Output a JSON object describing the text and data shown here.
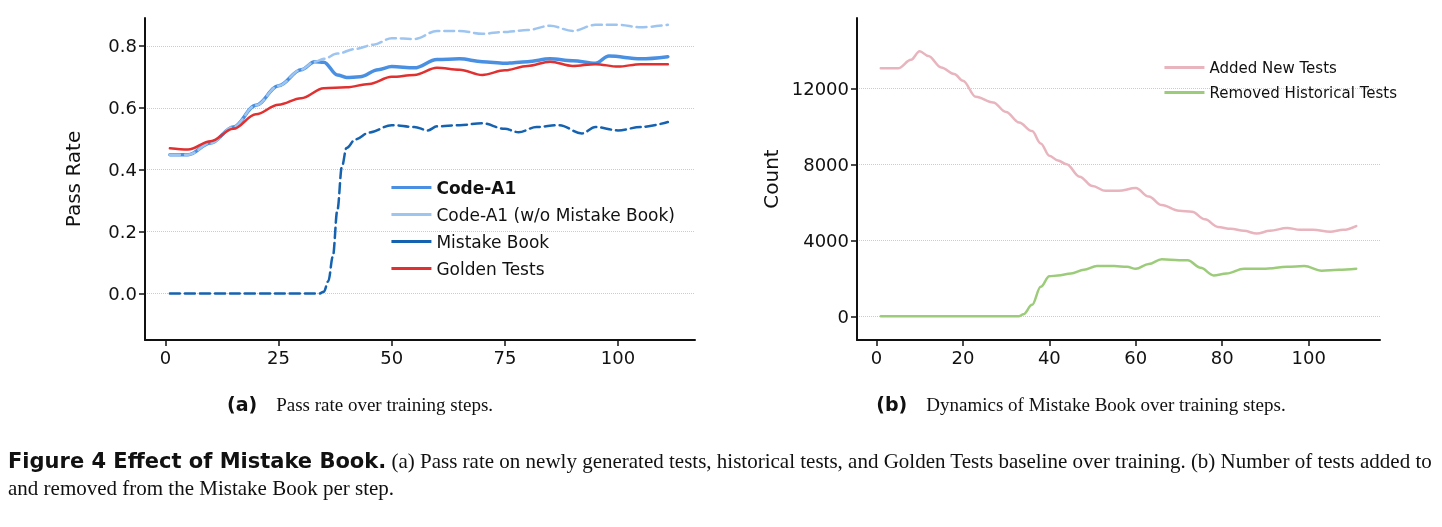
{
  "chart_data": [
    {
      "type": "line",
      "ylabel": "Pass Rate",
      "xlim": [
        -4.5,
        117
      ],
      "ylim": [
        -0.15,
        0.89
      ],
      "xticks": [
        0,
        25,
        50,
        75,
        100
      ],
      "yticks": [
        {
          "value": 0,
          "label": "0.0"
        },
        {
          "value": 0.2,
          "label": "0.2"
        },
        {
          "value": 0.4,
          "label": "0.4"
        },
        {
          "value": 0.6,
          "label": "0.6"
        },
        {
          "value": 0.8,
          "label": "0.8"
        }
      ],
      "grid": "y",
      "legend": "bottom right",
      "marker": "none",
      "annotations": [
        "(a) Pass rate over training steps.",
        "Figure 4 Effect of Mistake Book. (a) Pass rate on newly generated tests, historical tests, and Golden Tests baseline over training. (b) Number of tests added to and removed from the Mistake Book per step."
      ],
      "series": [
        {
          "name": "Code-A1",
          "color": "#4a90e2",
          "line_style": "solid",
          "x": [
            1,
            5,
            10,
            15,
            20,
            25,
            30,
            33,
            35,
            38,
            40,
            43,
            47,
            50,
            55,
            60,
            65,
            70,
            75,
            80,
            85,
            90,
            95,
            98,
            105,
            111
          ],
          "values": [
            0.448,
            0.448,
            0.486,
            0.538,
            0.608,
            0.671,
            0.723,
            0.749,
            0.747,
            0.706,
            0.698,
            0.7,
            0.723,
            0.733,
            0.729,
            0.756,
            0.758,
            0.749,
            0.744,
            0.749,
            0.758,
            0.752,
            0.744,
            0.767,
            0.758,
            0.765
          ]
        },
        {
          "name": "Code-A1 (w/o Mistake Book)",
          "color": "#9ec5f0",
          "line_style": "dashed",
          "x": [
            1,
            5,
            10,
            15,
            20,
            25,
            30,
            33,
            35,
            38,
            42,
            46,
            50,
            55,
            60,
            65,
            70,
            75,
            80,
            85,
            90,
            95,
            100,
            105,
            111
          ],
          "values": [
            0.448,
            0.448,
            0.486,
            0.538,
            0.608,
            0.671,
            0.723,
            0.749,
            0.758,
            0.775,
            0.79,
            0.804,
            0.825,
            0.822,
            0.848,
            0.848,
            0.839,
            0.845,
            0.851,
            0.865,
            0.848,
            0.868,
            0.868,
            0.86,
            0.868
          ]
        },
        {
          "name": "Mistake Book",
          "color": "#1562b0",
          "line_style": "dashed",
          "x": [
            1,
            10,
            20,
            30,
            34,
            35,
            36,
            37,
            38,
            39,
            40,
            42,
            45,
            50,
            55,
            58,
            60,
            65,
            70,
            75,
            78,
            82,
            87,
            92,
            95,
            100,
            105,
            111
          ],
          "values": [
            0,
            0,
            0,
            0,
            0,
            0.006,
            0.04,
            0.12,
            0.27,
            0.41,
            0.47,
            0.498,
            0.52,
            0.544,
            0.538,
            0.527,
            0.54,
            0.544,
            0.55,
            0.532,
            0.521,
            0.538,
            0.544,
            0.517,
            0.538,
            0.527,
            0.538,
            0.554
          ]
        },
        {
          "name": "Golden Tests",
          "color": "#e03030",
          "line_style": "solid",
          "x": [
            1,
            5,
            10,
            15,
            20,
            25,
            30,
            35,
            40,
            45,
            50,
            55,
            60,
            65,
            70,
            75,
            80,
            85,
            90,
            95,
            100,
            105,
            111
          ],
          "values": [
            0.469,
            0.465,
            0.492,
            0.532,
            0.579,
            0.61,
            0.631,
            0.663,
            0.666,
            0.677,
            0.7,
            0.706,
            0.729,
            0.723,
            0.706,
            0.721,
            0.735,
            0.749,
            0.735,
            0.741,
            0.733,
            0.741,
            0.741
          ]
        }
      ]
    },
    {
      "type": "line",
      "ylabel": "Count",
      "xlim": [
        -4.5,
        116.5
      ],
      "ylim": [
        -1250,
        15700
      ],
      "xticks": [
        0,
        20,
        40,
        60,
        80,
        100
      ],
      "yticks": [
        0,
        4000,
        8000,
        12000
      ],
      "grid": "y",
      "legend": "top right",
      "marker": "none",
      "annotations": [
        "(b) Dynamics of Mistake Book over training steps."
      ],
      "series": [
        {
          "name": "Added New Tests",
          "color": "#e8b4bd",
          "line_style": "solid",
          "x": [
            1,
            5,
            8,
            10,
            12,
            15,
            18,
            20,
            23,
            27,
            30,
            33,
            36,
            38,
            40,
            42,
            44,
            47,
            50,
            53,
            56,
            60,
            63,
            66,
            70,
            73,
            76,
            79,
            82,
            85,
            88,
            91,
            95,
            98,
            101,
            105,
            108,
            111
          ],
          "values": [
            13050,
            13050,
            13500,
            13950,
            13700,
            13100,
            12750,
            12400,
            11550,
            11250,
            10750,
            10200,
            9750,
            9100,
            8450,
            8200,
            8000,
            7350,
            6850,
            6600,
            6600,
            6750,
            6300,
            5850,
            5550,
            5500,
            5100,
            4700,
            4600,
            4500,
            4350,
            4500,
            4650,
            4550,
            4550,
            4450,
            4550,
            4750
          ]
        },
        {
          "name": "Removed Historical Tests",
          "color": "#9ccc7a",
          "line_style": "solid",
          "x": [
            1,
            10,
            20,
            30,
            33,
            34,
            36,
            38,
            40,
            42,
            45,
            48,
            51,
            55,
            58,
            60,
            63,
            66,
            70,
            72,
            75,
            78,
            81,
            85,
            90,
            95,
            99,
            103,
            107,
            111
          ],
          "values": [
            0,
            0,
            0,
            0,
            0,
            100,
            600,
            1550,
            2100,
            2150,
            2250,
            2450,
            2650,
            2650,
            2600,
            2500,
            2750,
            3000,
            2950,
            2950,
            2550,
            2150,
            2250,
            2500,
            2500,
            2600,
            2650,
            2400,
            2450,
            2500
          ]
        }
      ]
    }
  ]
}
